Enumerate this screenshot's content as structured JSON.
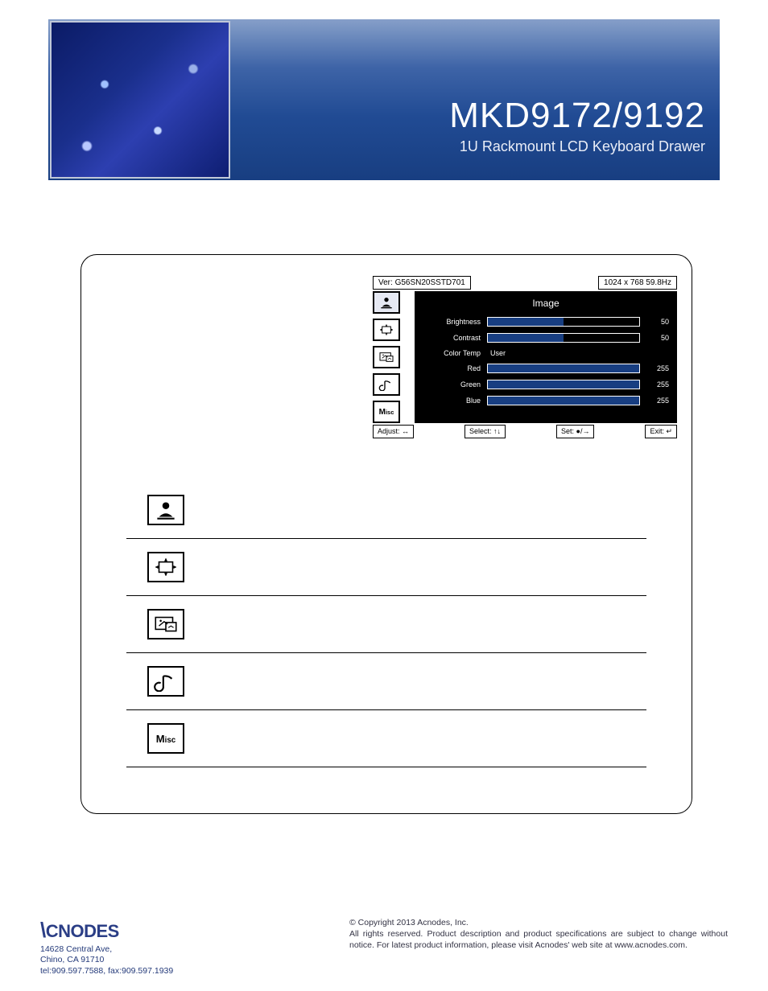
{
  "colors": {
    "banner_gradient": [
      "#869fc9",
      "#3e64a7",
      "#214b94",
      "#183e81"
    ],
    "bar_fill": "#183e81",
    "brand": "#2b3e86"
  },
  "header": {
    "title": "MKD9172/9192",
    "subtitle": "1U Rackmount LCD Keyboard Drawer"
  },
  "osd": {
    "version_label": "Ver: G56SN20SSTD701",
    "resolution_label": "1024 x 768  59.8Hz",
    "panel_title": "Image",
    "tabs": [
      {
        "key": "image",
        "selected": true
      },
      {
        "key": "geometry",
        "selected": false
      },
      {
        "key": "pip",
        "selected": false
      },
      {
        "key": "audio",
        "selected": false
      },
      {
        "key": "misc",
        "selected": false
      }
    ],
    "rows": [
      {
        "label": "Brightness",
        "value": 50,
        "max": 100,
        "has_bar": true
      },
      {
        "label": "Contrast",
        "value": 50,
        "max": 100,
        "has_bar": true
      },
      {
        "label": "Color Temp",
        "text": "User",
        "has_bar": false
      },
      {
        "label": "Red",
        "value": 255,
        "max": 255,
        "has_bar": true
      },
      {
        "label": "Green",
        "value": 255,
        "max": 255,
        "has_bar": true
      },
      {
        "label": "Blue",
        "value": 255,
        "max": 255,
        "has_bar": true
      }
    ],
    "hints": {
      "adjust": "Adjust: ↔",
      "select": "Select: ↑↓",
      "set": "Set: ●/→",
      "exit": "Exit: ↵"
    }
  },
  "icon_list": [
    {
      "key": "image"
    },
    {
      "key": "geometry"
    },
    {
      "key": "pip"
    },
    {
      "key": "audio"
    },
    {
      "key": "misc"
    }
  ],
  "footer": {
    "brand": "CNODES",
    "addr1": "14628 Central Ave,",
    "addr2": "Chino, CA 91710",
    "addr3": "tel:909.597.7588, fax:909.597.1939",
    "copyright": "© Copyright 2013 Acnodes, Inc.",
    "legal": "All rights reserved. Product description and product specifications are subject to change without notice. For latest product information, please visit Acnodes' web site at www.acnodes.com."
  }
}
